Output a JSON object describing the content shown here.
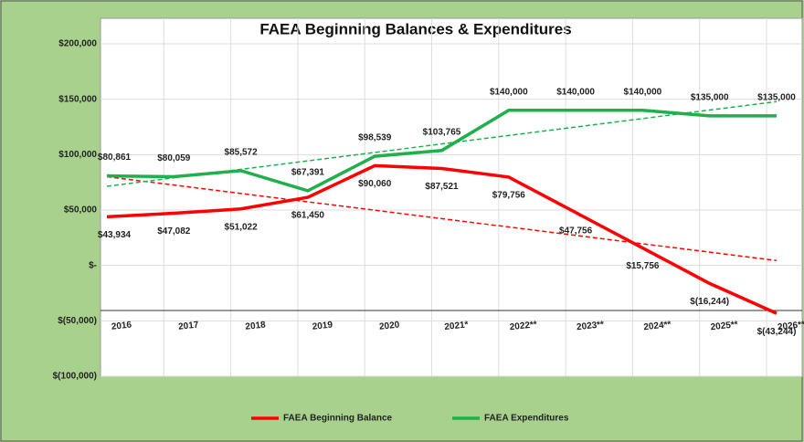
{
  "chart_data": {
    "type": "line",
    "title": "FAEA Beginning Balances & Expenditures",
    "categories": [
      "2016",
      "2017",
      "2018",
      "2019",
      "2020",
      "2021*",
      "2022**",
      "2023**",
      "2024**",
      "2025**",
      "2026**"
    ],
    "series": [
      {
        "name": "FAEA Beginning Balance",
        "color": "#ff0000",
        "trendline": true,
        "values": [
          43934,
          47082,
          51022,
          61450,
          90060,
          87521,
          79756,
          47756,
          15756,
          -16244,
          -43244
        ],
        "value_labels": [
          "$43,934",
          "$47,082",
          "$51,022",
          "$61,450",
          "$90,060",
          "$87,521",
          "$79,756",
          "$47,756",
          "$15,756",
          "$(16,244)",
          "$(43,244)"
        ]
      },
      {
        "name": "FAEA Expenditures",
        "color": "#1db04b",
        "trendline": true,
        "values": [
          80861,
          80059,
          85572,
          67391,
          98539,
          103765,
          140000,
          140000,
          140000,
          135000,
          135000
        ],
        "value_labels": [
          "$80,861",
          "$80,059",
          "$85,572",
          "$67,391",
          "$98,539",
          "$103,765",
          "$140,000",
          "$140,000",
          "$140,000",
          "$135,000",
          "$135,000"
        ]
      }
    ],
    "ylim": [
      -100000,
      200000
    ],
    "yticks": [
      {
        "value": -100000,
        "label": "$(100,000)"
      },
      {
        "value": -50000,
        "label": "$(50,000)"
      },
      {
        "value": 0,
        "label": "$-"
      },
      {
        "value": 50000,
        "label": "$50,000"
      },
      {
        "value": 100000,
        "label": "$100,000"
      },
      {
        "value": 150000,
        "label": "$150,000"
      },
      {
        "value": 200000,
        "label": "$200,000"
      }
    ],
    "grid": true,
    "legend": "bottom"
  }
}
